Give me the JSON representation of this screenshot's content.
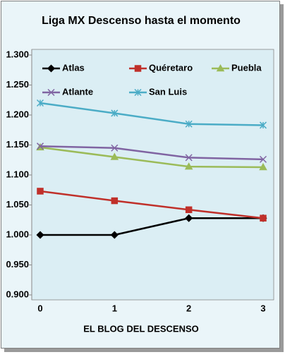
{
  "chart_data": {
    "type": "line",
    "title": "Liga MX Descenso hasta el momento",
    "x_label": "EL BLOG DEL DESCENSO",
    "categories": [
      "0",
      "1",
      "2",
      "3"
    ],
    "series": [
      {
        "name": "Atlas",
        "color": "#000000",
        "marker": "diamond",
        "values": [
          1.0,
          1.0,
          1.028,
          1.028
        ]
      },
      {
        "name": "Quéretaro",
        "color": "#c0302a",
        "marker": "square",
        "values": [
          1.073,
          1.057,
          1.042,
          1.028
        ]
      },
      {
        "name": "Puebla",
        "color": "#9bbb59",
        "marker": "triangle",
        "values": [
          1.146,
          1.13,
          1.114,
          1.113
        ]
      },
      {
        "name": "Atlante",
        "color": "#8064a2",
        "marker": "x",
        "values": [
          1.148,
          1.145,
          1.129,
          1.126
        ]
      },
      {
        "name": "San Luis",
        "color": "#4bacc6",
        "marker": "star",
        "values": [
          1.22,
          1.203,
          1.185,
          1.183
        ]
      }
    ],
    "ylim": [
      0.9,
      1.3
    ],
    "yticks": [
      {
        "value": 0.9,
        "label": "0.900"
      },
      {
        "value": 0.95,
        "label": "0.950"
      },
      {
        "value": 1.0,
        "label": "1.000"
      },
      {
        "value": 1.05,
        "label": "1.050"
      },
      {
        "value": 1.1,
        "label": "1.100"
      },
      {
        "value": 1.15,
        "label": "1.150"
      },
      {
        "value": 1.2,
        "label": "1.200"
      },
      {
        "value": 1.25,
        "label": "1.250"
      },
      {
        "value": 1.3,
        "label": "1.300"
      }
    ],
    "grid": false
  }
}
